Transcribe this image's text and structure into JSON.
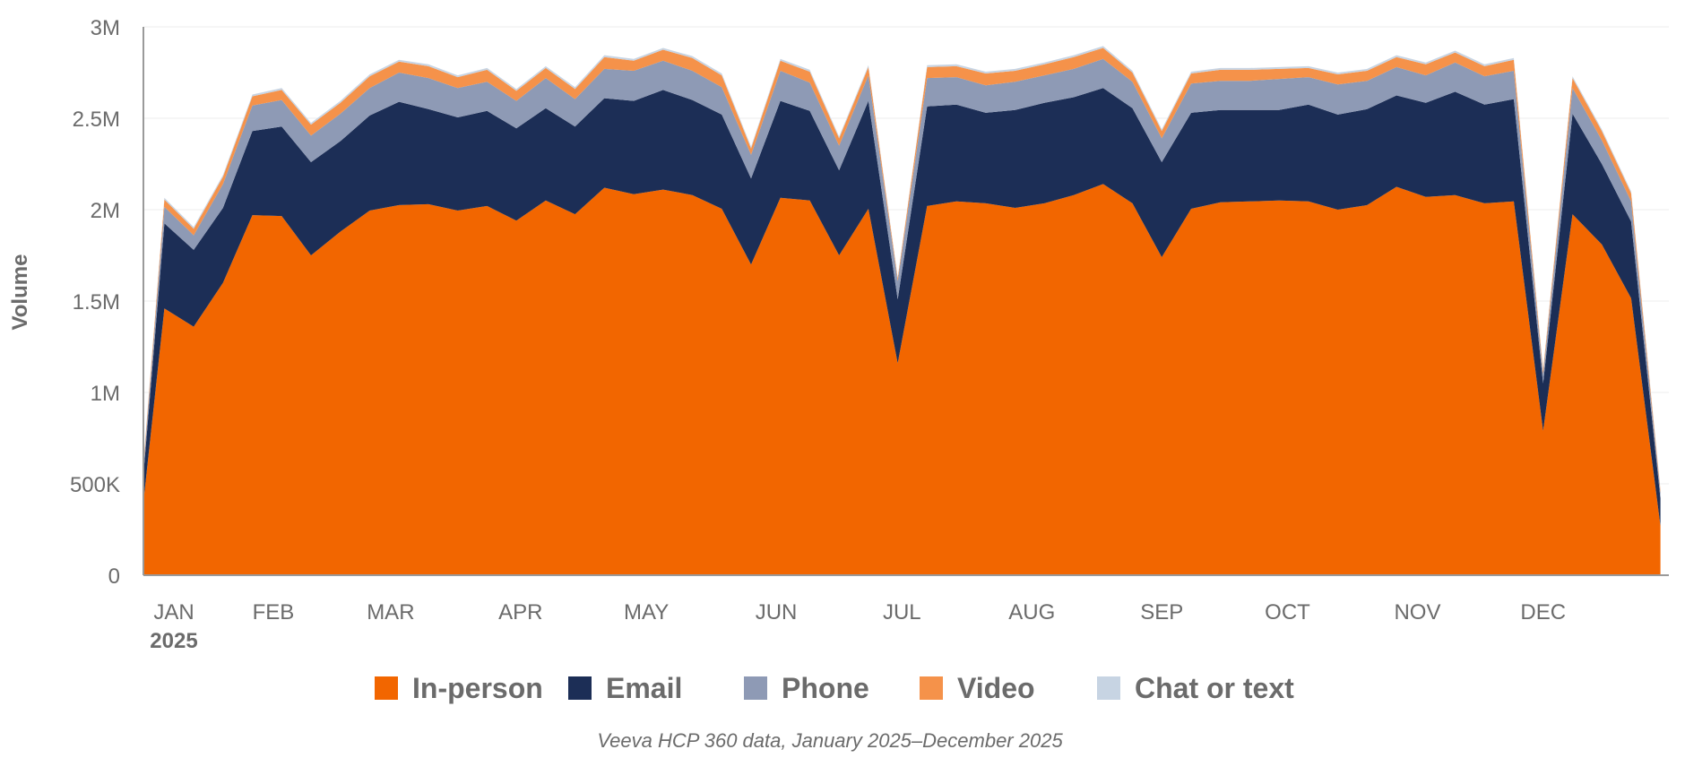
{
  "chart_data": {
    "type": "area",
    "stacked": true,
    "ylabel": "Volume",
    "ylim": [
      0,
      3000000
    ],
    "yticks": [
      0,
      500000,
      1000000,
      1500000,
      2000000,
      2500000,
      3000000
    ],
    "ytick_labels": [
      "0",
      "500K",
      "1M",
      "1.5M",
      "2M",
      "2.5M",
      "3M"
    ],
    "month_labels": [
      "JAN",
      "FEB",
      "MAR",
      "APR",
      "MAY",
      "JUN",
      "JUL",
      "AUG",
      "SEP",
      "OCT",
      "NOV",
      "DEC"
    ],
    "year_label": "2025",
    "x": [
      "2025-01-01",
      "2025-01-06",
      "2025-01-13",
      "2025-01-20",
      "2025-01-27",
      "2025-02-03",
      "2025-02-10",
      "2025-02-17",
      "2025-02-24",
      "2025-03-03",
      "2025-03-10",
      "2025-03-17",
      "2025-03-24",
      "2025-03-31",
      "2025-04-07",
      "2025-04-14",
      "2025-04-21",
      "2025-04-28",
      "2025-05-05",
      "2025-05-12",
      "2025-05-19",
      "2025-05-26",
      "2025-06-02",
      "2025-06-09",
      "2025-06-16",
      "2025-06-23",
      "2025-06-30",
      "2025-07-07",
      "2025-07-14",
      "2025-07-21",
      "2025-07-28",
      "2025-08-04",
      "2025-08-11",
      "2025-08-18",
      "2025-08-25",
      "2025-09-01",
      "2025-09-08",
      "2025-09-15",
      "2025-09-22",
      "2025-09-29",
      "2025-10-06",
      "2025-10-13",
      "2025-10-20",
      "2025-10-27",
      "2025-11-03",
      "2025-11-10",
      "2025-11-17",
      "2025-11-24",
      "2025-12-01",
      "2025-12-08",
      "2025-12-15",
      "2025-12-22",
      "2025-12-29"
    ],
    "series": [
      {
        "name": "In-person",
        "color": "#f26600",
        "values": [
          400000,
          1460000,
          1360000,
          1600000,
          1970000,
          1965000,
          1750000,
          1880000,
          1995000,
          2025000,
          2030000,
          1995000,
          2020000,
          1940000,
          2050000,
          1975000,
          2120000,
          2085000,
          2110000,
          2080000,
          2005000,
          1700000,
          2065000,
          2050000,
          1750000,
          2005000,
          1160000,
          2020000,
          2045000,
          2035000,
          2010000,
          2035000,
          2080000,
          2140000,
          2035000,
          1740000,
          2005000,
          2040000,
          2045000,
          2050000,
          2045000,
          2000000,
          2025000,
          2125000,
          2070000,
          2080000,
          2035000,
          2045000,
          790000,
          1975000,
          1810000,
          1515000,
          270000
        ]
      },
      {
        "name": "Email",
        "color": "#1c2e56",
        "values": [
          150000,
          465000,
          420000,
          410000,
          460000,
          490000,
          510000,
          495000,
          520000,
          565000,
          520000,
          510000,
          520000,
          505000,
          505000,
          480000,
          490000,
          510000,
          545000,
          520000,
          515000,
          470000,
          530000,
          490000,
          465000,
          590000,
          350000,
          545000,
          530000,
          495000,
          535000,
          550000,
          535000,
          525000,
          520000,
          520000,
          525000,
          505000,
          500000,
          495000,
          530000,
          520000,
          525000,
          500000,
          515000,
          565000,
          540000,
          560000,
          260000,
          550000,
          440000,
          420000,
          150000
        ]
      },
      {
        "name": "Phone",
        "color": "#8e9ab5",
        "values": [
          40000,
          90000,
          80000,
          130000,
          140000,
          145000,
          145000,
          150000,
          150000,
          160000,
          170000,
          160000,
          160000,
          150000,
          165000,
          150000,
          160000,
          165000,
          160000,
          160000,
          150000,
          130000,
          165000,
          155000,
          135000,
          140000,
          100000,
          155000,
          150000,
          150000,
          155000,
          150000,
          155000,
          160000,
          145000,
          130000,
          160000,
          160000,
          160000,
          170000,
          150000,
          165000,
          155000,
          155000,
          150000,
          160000,
          155000,
          155000,
          50000,
          140000,
          130000,
          110000,
          30000
        ]
      },
      {
        "name": "Video",
        "color": "#f5924a",
        "values": [
          20000,
          40000,
          35000,
          40000,
          50000,
          55000,
          60000,
          60000,
          65000,
          60000,
          65000,
          60000,
          65000,
          55000,
          55000,
          55000,
          65000,
          55000,
          60000,
          70000,
          65000,
          35000,
          55000,
          60000,
          40000,
          45000,
          15000,
          60000,
          60000,
          65000,
          60000,
          60000,
          65000,
          60000,
          50000,
          40000,
          55000,
          60000,
          60000,
          55000,
          50000,
          55000,
          55000,
          55000,
          60000,
          55000,
          55000,
          60000,
          20000,
          55000,
          50000,
          45000,
          15000
        ]
      },
      {
        "name": "Chat or text",
        "color": "#c7d4e3",
        "values": [
          5000,
          10000,
          10000,
          10000,
          10000,
          10000,
          10000,
          10000,
          10000,
          10000,
          10000,
          10000,
          10000,
          10000,
          10000,
          10000,
          10000,
          10000,
          10000,
          10000,
          10000,
          10000,
          10000,
          10000,
          10000,
          10000,
          5000,
          10000,
          10000,
          10000,
          10000,
          10000,
          10000,
          10000,
          10000,
          10000,
          10000,
          10000,
          10000,
          10000,
          10000,
          10000,
          10000,
          10000,
          10000,
          10000,
          10000,
          10000,
          5000,
          10000,
          10000,
          10000,
          5000
        ]
      }
    ],
    "legend_position": "bottom",
    "grid": true
  },
  "source_note": "Veeva HCP 360 data, January 2025–December 2025"
}
